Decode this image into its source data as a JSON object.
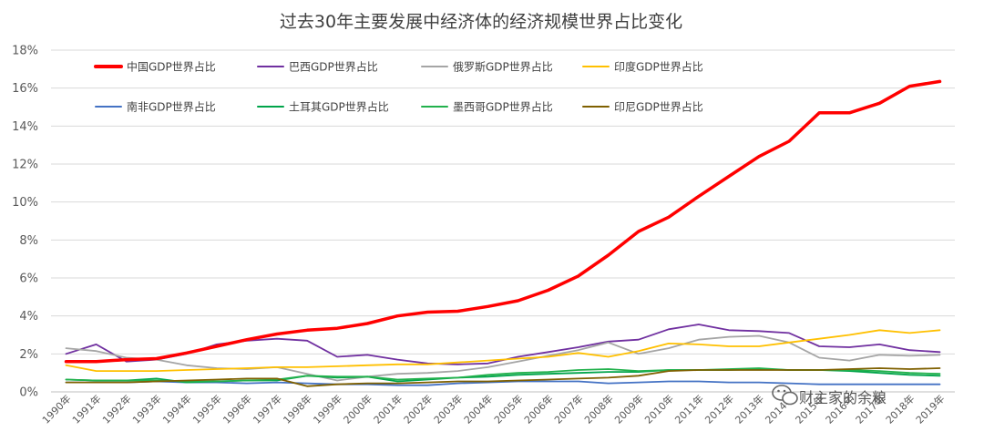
{
  "watermark": {
    "text": "财主家的余粮",
    "icon": "wechat-icon"
  },
  "chart_data": {
    "type": "line",
    "title": "过去30年主要发展中经济体的经济规模世界占比变化",
    "xlabel": "",
    "ylabel": "",
    "ylim": [
      0,
      18
    ],
    "y_ticks": [
      "0%",
      "2%",
      "4%",
      "6%",
      "8%",
      "10%",
      "12%",
      "14%",
      "16%",
      "18%"
    ],
    "y_tick_values": [
      0,
      2,
      4,
      6,
      8,
      10,
      12,
      14,
      16,
      18
    ],
    "grid": true,
    "legend_position": "top",
    "categories": [
      "1990年",
      "1991年",
      "1992年",
      "1993年",
      "1994年",
      "1995年",
      "1996年",
      "1997年",
      "1998年",
      "1999年",
      "2000年",
      "2001年",
      "2002年",
      "2003年",
      "2004年",
      "2005年",
      "2006年",
      "2007年",
      "2008年",
      "2009年",
      "2010年",
      "2011年",
      "2012年",
      "2013年",
      "2014年",
      "2015年",
      "2016年",
      "2017年",
      "2018年",
      "2019年"
    ],
    "series": [
      {
        "name": "中国GDP世界占比",
        "color": "#FF0000",
        "bold": true,
        "values": [
          1.6,
          1.6,
          1.7,
          1.75,
          2.05,
          2.4,
          2.75,
          3.05,
          3.25,
          3.35,
          3.6,
          4.0,
          4.2,
          4.25,
          4.5,
          4.8,
          5.35,
          6.1,
          7.2,
          8.45,
          9.2,
          10.3,
          11.35,
          12.4,
          13.2,
          14.7,
          14.7,
          15.2,
          16.1,
          16.35
        ]
      },
      {
        "name": "巴西GDP世界占比",
        "color": "#7030A0",
        "values": [
          2.0,
          2.5,
          1.6,
          1.7,
          2.0,
          2.5,
          2.7,
          2.8,
          2.7,
          1.85,
          1.95,
          1.7,
          1.5,
          1.45,
          1.5,
          1.85,
          2.1,
          2.35,
          2.65,
          2.75,
          3.3,
          3.55,
          3.25,
          3.2,
          3.1,
          2.4,
          2.35,
          2.5,
          2.2,
          2.1
        ]
      },
      {
        "name": "俄罗斯GDP世界占比",
        "color": "#A5A5A5",
        "values": [
          2.3,
          2.15,
          1.8,
          1.7,
          1.4,
          1.25,
          1.2,
          1.3,
          0.95,
          0.6,
          0.8,
          0.95,
          1.0,
          1.1,
          1.3,
          1.6,
          1.9,
          2.2,
          2.6,
          2.0,
          2.3,
          2.75,
          2.9,
          2.95,
          2.6,
          1.8,
          1.65,
          1.95,
          1.9,
          1.95
        ]
      },
      {
        "name": "印度GDP世界占比",
        "color": "#FFC000",
        "values": [
          1.4,
          1.1,
          1.1,
          1.1,
          1.15,
          1.2,
          1.25,
          1.3,
          1.3,
          1.35,
          1.4,
          1.45,
          1.45,
          1.55,
          1.65,
          1.75,
          1.85,
          2.05,
          1.85,
          2.15,
          2.55,
          2.5,
          2.4,
          2.4,
          2.6,
          2.8,
          3.0,
          3.25,
          3.1,
          3.25
        ]
      },
      {
        "name": "南非GDP世界占比",
        "color": "#4472C4",
        "values": [
          0.5,
          0.5,
          0.5,
          0.55,
          0.5,
          0.5,
          0.45,
          0.5,
          0.45,
          0.4,
          0.4,
          0.35,
          0.35,
          0.45,
          0.5,
          0.55,
          0.55,
          0.55,
          0.45,
          0.5,
          0.55,
          0.55,
          0.5,
          0.5,
          0.45,
          0.4,
          0.4,
          0.4,
          0.4,
          0.4
        ]
      },
      {
        "name": "土耳其GDP世界占比",
        "color": "#00A44A",
        "values": [
          0.65,
          0.6,
          0.6,
          0.7,
          0.5,
          0.55,
          0.6,
          0.6,
          0.85,
          0.75,
          0.8,
          0.55,
          0.65,
          0.75,
          0.8,
          0.9,
          0.95,
          1.0,
          1.05,
          1.05,
          1.15,
          1.15,
          1.15,
          1.2,
          1.15,
          1.15,
          1.1,
          1.0,
          0.9,
          0.85
        ]
      },
      {
        "name": "墨西哥GDP世界占比",
        "color": "#22B14C",
        "values": [
          0.65,
          0.6,
          0.6,
          0.6,
          0.55,
          0.55,
          0.6,
          0.65,
          0.85,
          0.8,
          0.8,
          0.65,
          0.7,
          0.75,
          0.9,
          1.0,
          1.05,
          1.15,
          1.2,
          1.1,
          1.15,
          1.15,
          1.2,
          1.25,
          1.15,
          1.15,
          1.15,
          1.1,
          1.0,
          0.95
        ]
      },
      {
        "name": "印尼GDP世界占比",
        "color": "#7F6000",
        "values": [
          0.5,
          0.5,
          0.5,
          0.55,
          0.6,
          0.65,
          0.7,
          0.7,
          0.3,
          0.4,
          0.45,
          0.45,
          0.5,
          0.55,
          0.55,
          0.6,
          0.65,
          0.7,
          0.75,
          0.85,
          1.1,
          1.15,
          1.15,
          1.15,
          1.15,
          1.15,
          1.2,
          1.25,
          1.2,
          1.25
        ]
      }
    ]
  }
}
